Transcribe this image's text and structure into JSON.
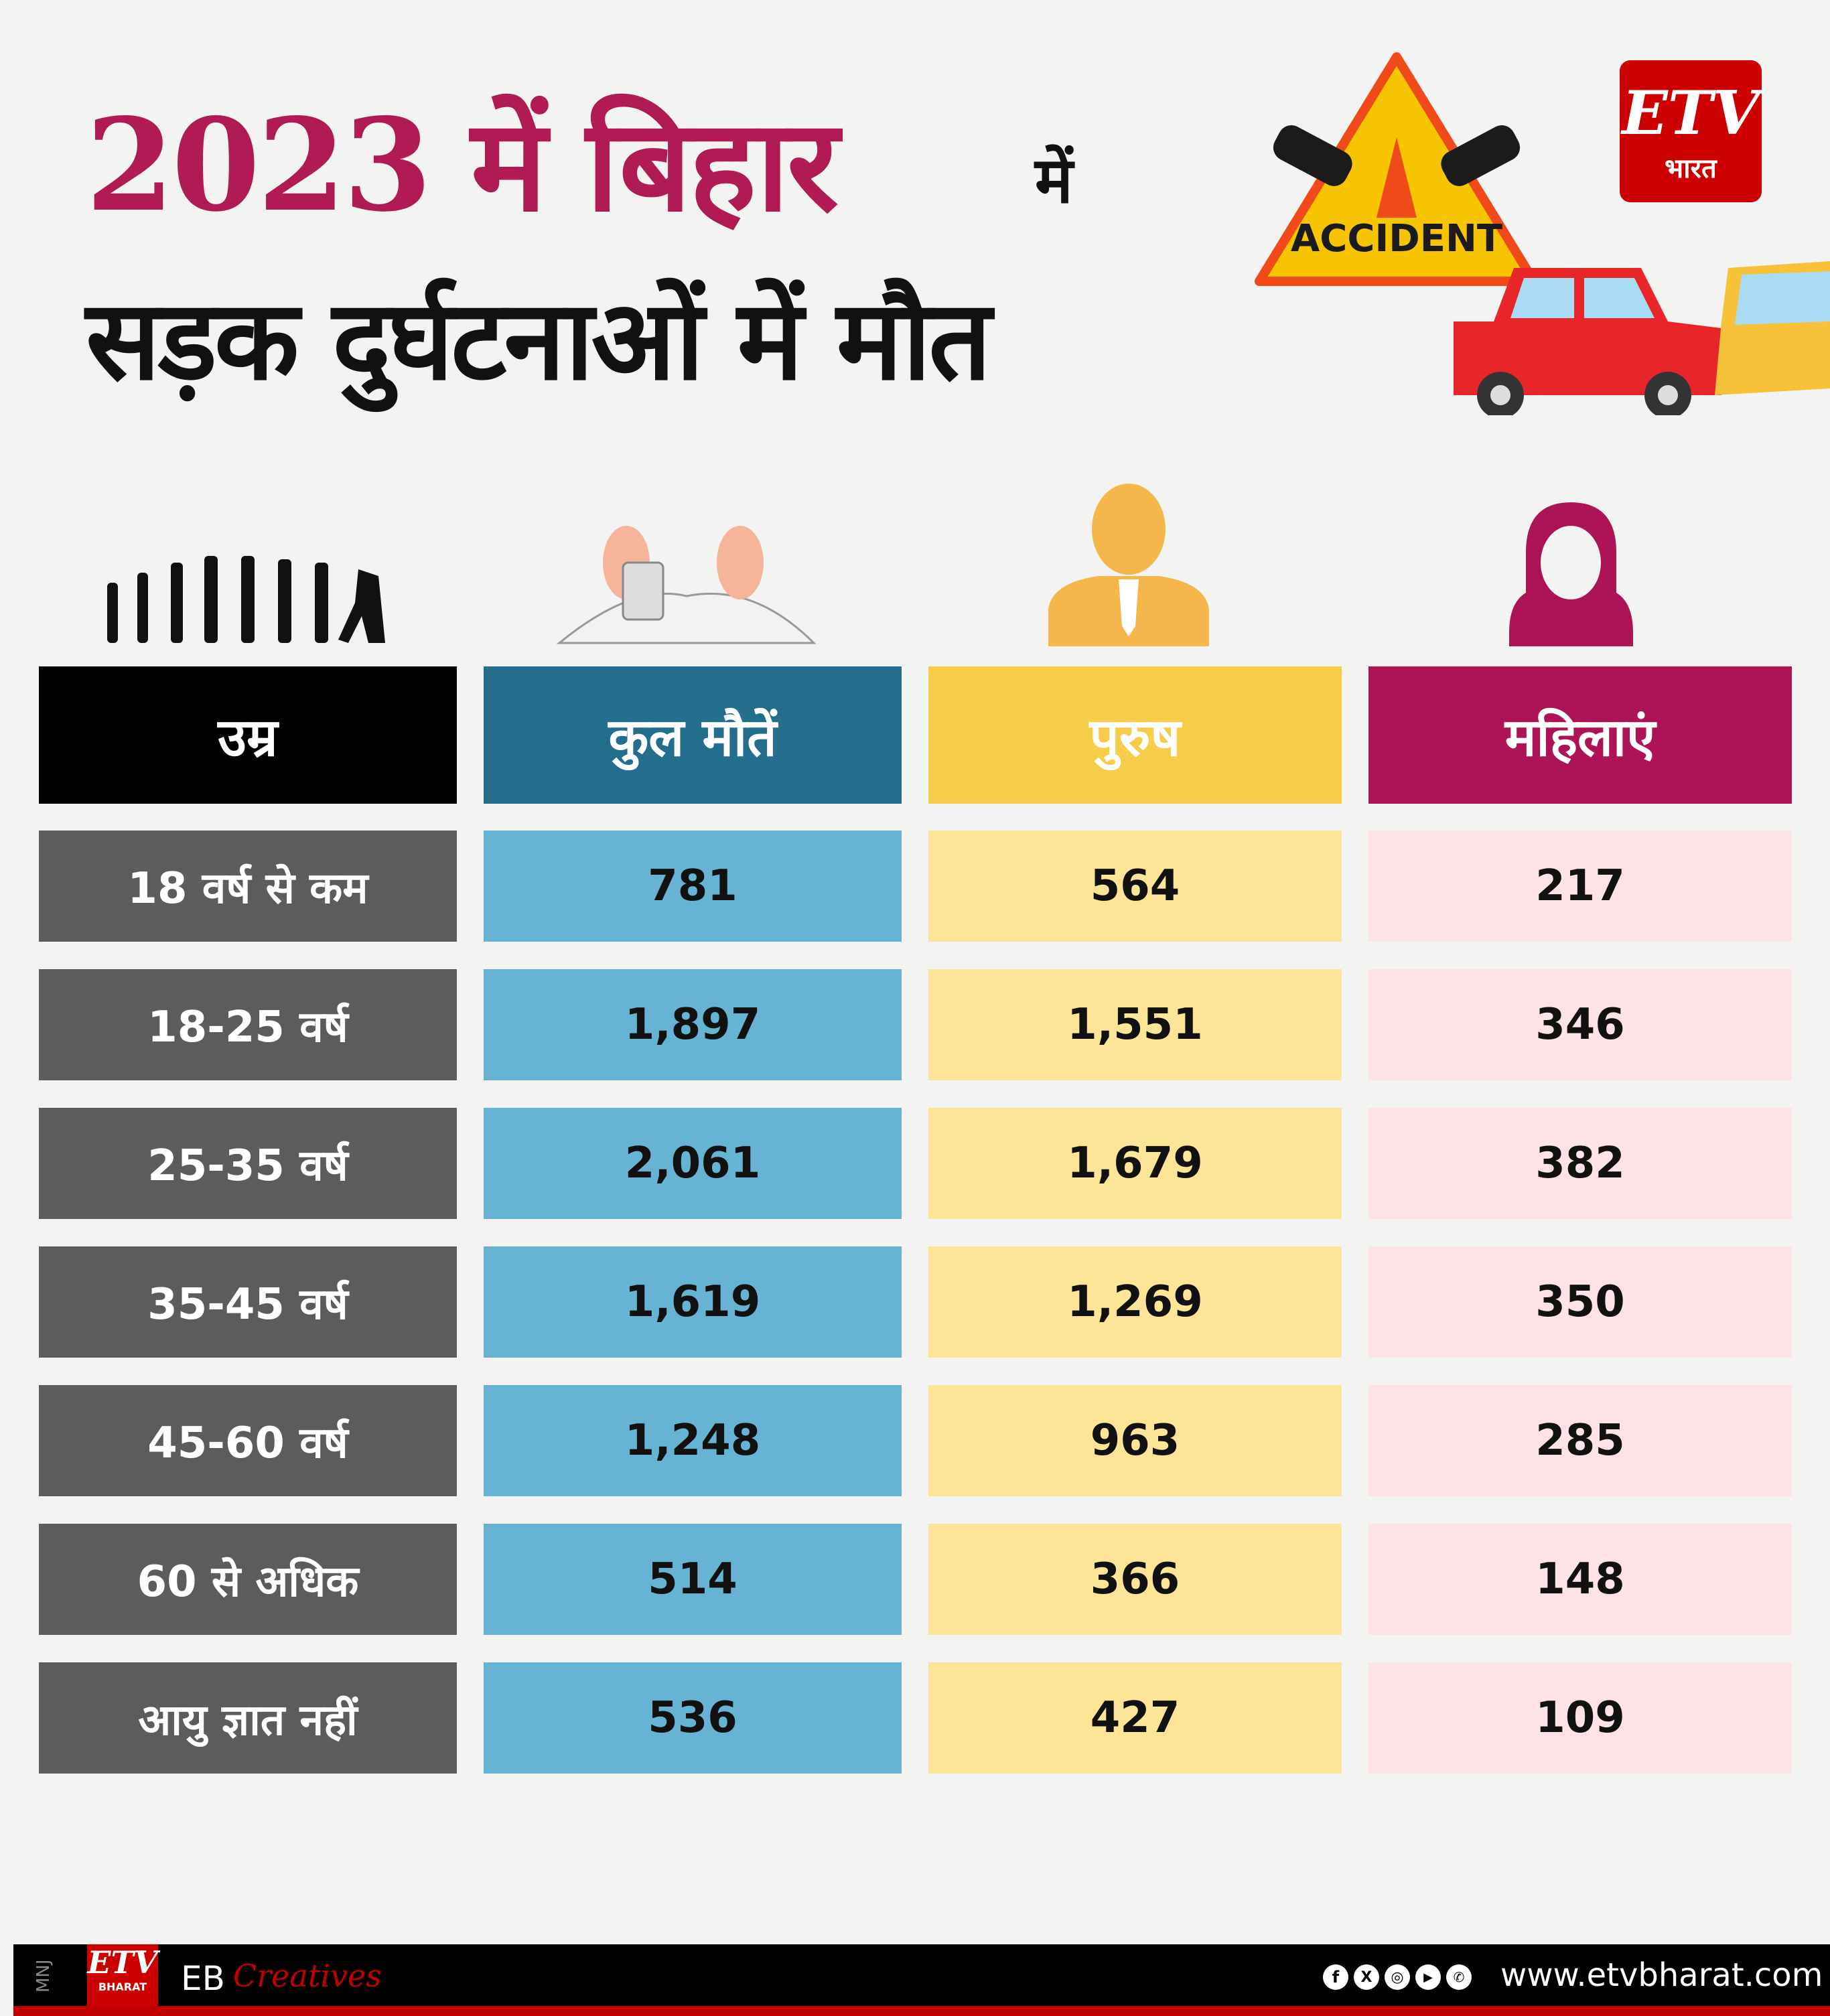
{
  "title": {
    "line1": "2023 में बिहार",
    "line1_suffix": "में",
    "line2": "सड़क दुर्घटनाओं में मौत"
  },
  "sign": {
    "label": "ACCIDENT"
  },
  "logo": {
    "brand": "ETV",
    "sub": "भारत"
  },
  "table": {
    "headers": [
      "उम्र",
      "कुल मौतें",
      "पुरुष",
      "महिलाएं"
    ],
    "rows": [
      [
        "18 वर्ष से कम",
        "781",
        "564",
        "217"
      ],
      [
        "18-25 वर्ष",
        "1,897",
        "1,551",
        "346"
      ],
      [
        "25-35 वर्ष",
        "2,061",
        "1,679",
        "382"
      ],
      [
        "35-45 वर्ष",
        "1,619",
        "1,269",
        "350"
      ],
      [
        "45-60 वर्ष",
        "1,248",
        "963",
        "285"
      ],
      [
        "60 से अधिक",
        "514",
        "366",
        "148"
      ],
      [
        "आयु ज्ञात नहीं",
        "536",
        "427",
        "109"
      ]
    ]
  },
  "colors": {
    "title": "#b01a55",
    "age_header": "#000000",
    "total_header": "#236e8c",
    "male_header": "#f5cd48",
    "female_header": "#ad1457",
    "age_cell": "#5c5c5c",
    "total_cell": "#66b3d3",
    "male_cell": "#fde597",
    "female_cell": "#fde3e5"
  },
  "footer": {
    "initials": "MNJ",
    "brand": "ETV",
    "brand_sub": "BHARAT",
    "eb": "EB",
    "creatives": "Creatives",
    "website": "www.etvbharat.com",
    "social_icons": [
      "facebook-icon",
      "x-icon",
      "instagram-icon",
      "youtube-icon",
      "whatsapp-icon"
    ]
  }
}
